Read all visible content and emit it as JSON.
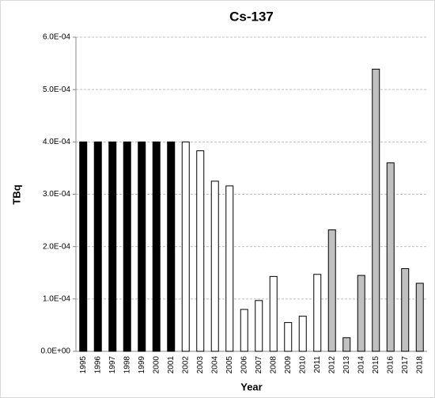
{
  "chart_data": {
    "type": "bar",
    "title": "Cs-137",
    "x_label": "Year",
    "y_label": "TBq",
    "categories": [
      "1995",
      "1996",
      "1997",
      "1998",
      "1999",
      "2000",
      "2001",
      "2002",
      "2003",
      "2004",
      "2005",
      "2006",
      "2007",
      "2008",
      "2009",
      "2010",
      "2011",
      "2012",
      "2013",
      "2014",
      "2015",
      "2016",
      "2017",
      "2018"
    ],
    "values": [
      0.0004,
      0.0004,
      0.0004,
      0.0004,
      0.0004,
      0.0004,
      0.0004,
      0.0004,
      0.000383,
      0.000325,
      0.000316,
      8e-05,
      9.7e-05,
      0.000143,
      5.5e-05,
      6.7e-05,
      0.000147,
      0.000232,
      2.6e-05,
      0.000145,
      0.000539,
      0.00036,
      0.000158,
      0.00013
    ],
    "colors": [
      "#000000",
      "#000000",
      "#000000",
      "#000000",
      "#000000",
      "#000000",
      "#000000",
      "#ffffff",
      "#ffffff",
      "#ffffff",
      "#ffffff",
      "#ffffff",
      "#ffffff",
      "#ffffff",
      "#ffffff",
      "#ffffff",
      "#ffffff",
      "#c0c0c0",
      "#c0c0c0",
      "#c0c0c0",
      "#c0c0c0",
      "#c0c0c0",
      "#c0c0c0",
      "#c0c0c0"
    ],
    "ylim": [
      0,
      0.0006
    ],
    "yticks": [
      {
        "value": 0,
        "label": "0.0E+00"
      },
      {
        "value": 0.0001,
        "label": "1.0E-04"
      },
      {
        "value": 0.0002,
        "label": "2.0E-04"
      },
      {
        "value": 0.0003,
        "label": "3.0E-04"
      },
      {
        "value": 0.0004,
        "label": "4.0E-04"
      },
      {
        "value": 0.0005,
        "label": "5.0E-04"
      },
      {
        "value": 0.0006,
        "label": "6.0E-04"
      }
    ],
    "grid": true
  }
}
